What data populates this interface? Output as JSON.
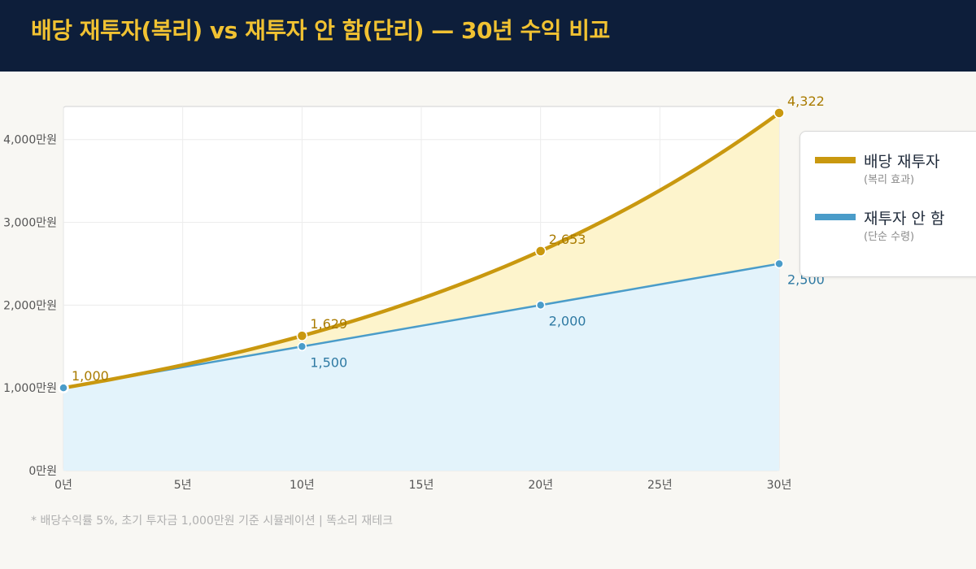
{
  "header": {
    "title": "배당 재투자(복리) vs 재투자 안 함(단리) — 30년 수익 비교"
  },
  "chart_data": {
    "type": "area",
    "x": [
      0,
      5,
      10,
      15,
      20,
      25,
      30
    ],
    "x_tick_labels": [
      "0년",
      "5년",
      "10년",
      "15년",
      "20년",
      "25년",
      "30년"
    ],
    "y_tick_labels": [
      "0만원",
      "1,000만원",
      "2,000만원",
      "3,000만원",
      "4,000만원"
    ],
    "y_ticks": [
      0,
      1000,
      2000,
      3000,
      4000
    ],
    "xlim": [
      0,
      30
    ],
    "ylim": [
      0,
      4400
    ],
    "grid": true,
    "legend_position": "right",
    "series": [
      {
        "name": "배당 재투자",
        "subtitle": "(복리 효과)",
        "color": "#c9980f",
        "fill": "#fdf4cc",
        "x": [
          0,
          5,
          10,
          15,
          20,
          25,
          30
        ],
        "values": [
          1000,
          1276,
          1629,
          2079,
          2653,
          3386,
          4322
        ],
        "labeled_points": [
          {
            "x": 0,
            "value": 1000,
            "label": "1,000"
          },
          {
            "x": 10,
            "value": 1629,
            "label": "1,629"
          },
          {
            "x": 20,
            "value": 2653,
            "label": "2,653"
          },
          {
            "x": 30,
            "value": 4322,
            "label": "4,322"
          }
        ]
      },
      {
        "name": "재투자 안 함",
        "subtitle": "(단순 수령)",
        "color": "#4a9cc9",
        "fill": "#e3f3fb",
        "x": [
          0,
          5,
          10,
          15,
          20,
          25,
          30
        ],
        "values": [
          1000,
          1250,
          1500,
          1750,
          2000,
          2250,
          2500
        ],
        "labeled_points": [
          {
            "x": 0,
            "value": 1000,
            "label": ""
          },
          {
            "x": 10,
            "value": 1500,
            "label": "1,500"
          },
          {
            "x": 20,
            "value": 2000,
            "label": "2,000"
          },
          {
            "x": 30,
            "value": 2500,
            "label": "2,500"
          }
        ]
      }
    ]
  },
  "footnote": "* 배당수익률 5%, 초기 투자금 1,000만원 기준 시뮬레이션 | 똑소리 재테크"
}
